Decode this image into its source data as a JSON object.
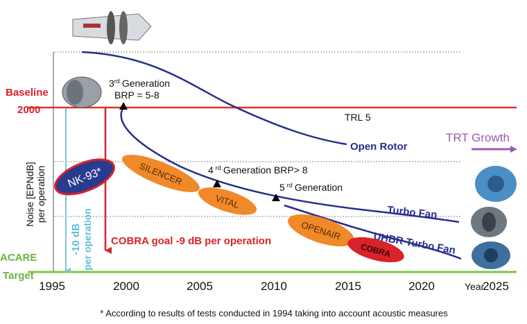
{
  "axes": {
    "y_label": [
      "Noise [EPNdB]",
      "per operation"
    ],
    "x_ticks": [
      "1995",
      "2000",
      "2005",
      "2010",
      "2015",
      "2020",
      "2025"
    ],
    "x_unit": "Year"
  },
  "levels": {
    "baseline": [
      "Baseline",
      "2000"
    ],
    "target": [
      "ACARE",
      "Target"
    ]
  },
  "curves": {
    "open_rotor": "Open Rotor",
    "turbo_fan": "Turbo Fan",
    "uhbr": "UHBR Turbo Fan"
  },
  "annotations": {
    "gen3": {
      "number": "3",
      "sup": "rd",
      "text": "Generation",
      "brp": "BRP = 5-8"
    },
    "trl": "TRL 5",
    "gen4": {
      "number": "4",
      "sup": "rd",
      "text": "Generation BRP> 8"
    },
    "gen5": {
      "number": "5",
      "sup": "rd",
      "text": "Generation"
    },
    "trt": "TRT Growth",
    "minus10": [
      "-10 dB",
      "per operation"
    ],
    "cobra_goal": "COBRA goal -9 dB per operation"
  },
  "projects": [
    "NK-93*",
    "SILENCER",
    "VITAL",
    "OPENAIR",
    "COBRA"
  ],
  "footnote": "* According to results of tests conducted in 1994 taking into account acoustic measures"
}
